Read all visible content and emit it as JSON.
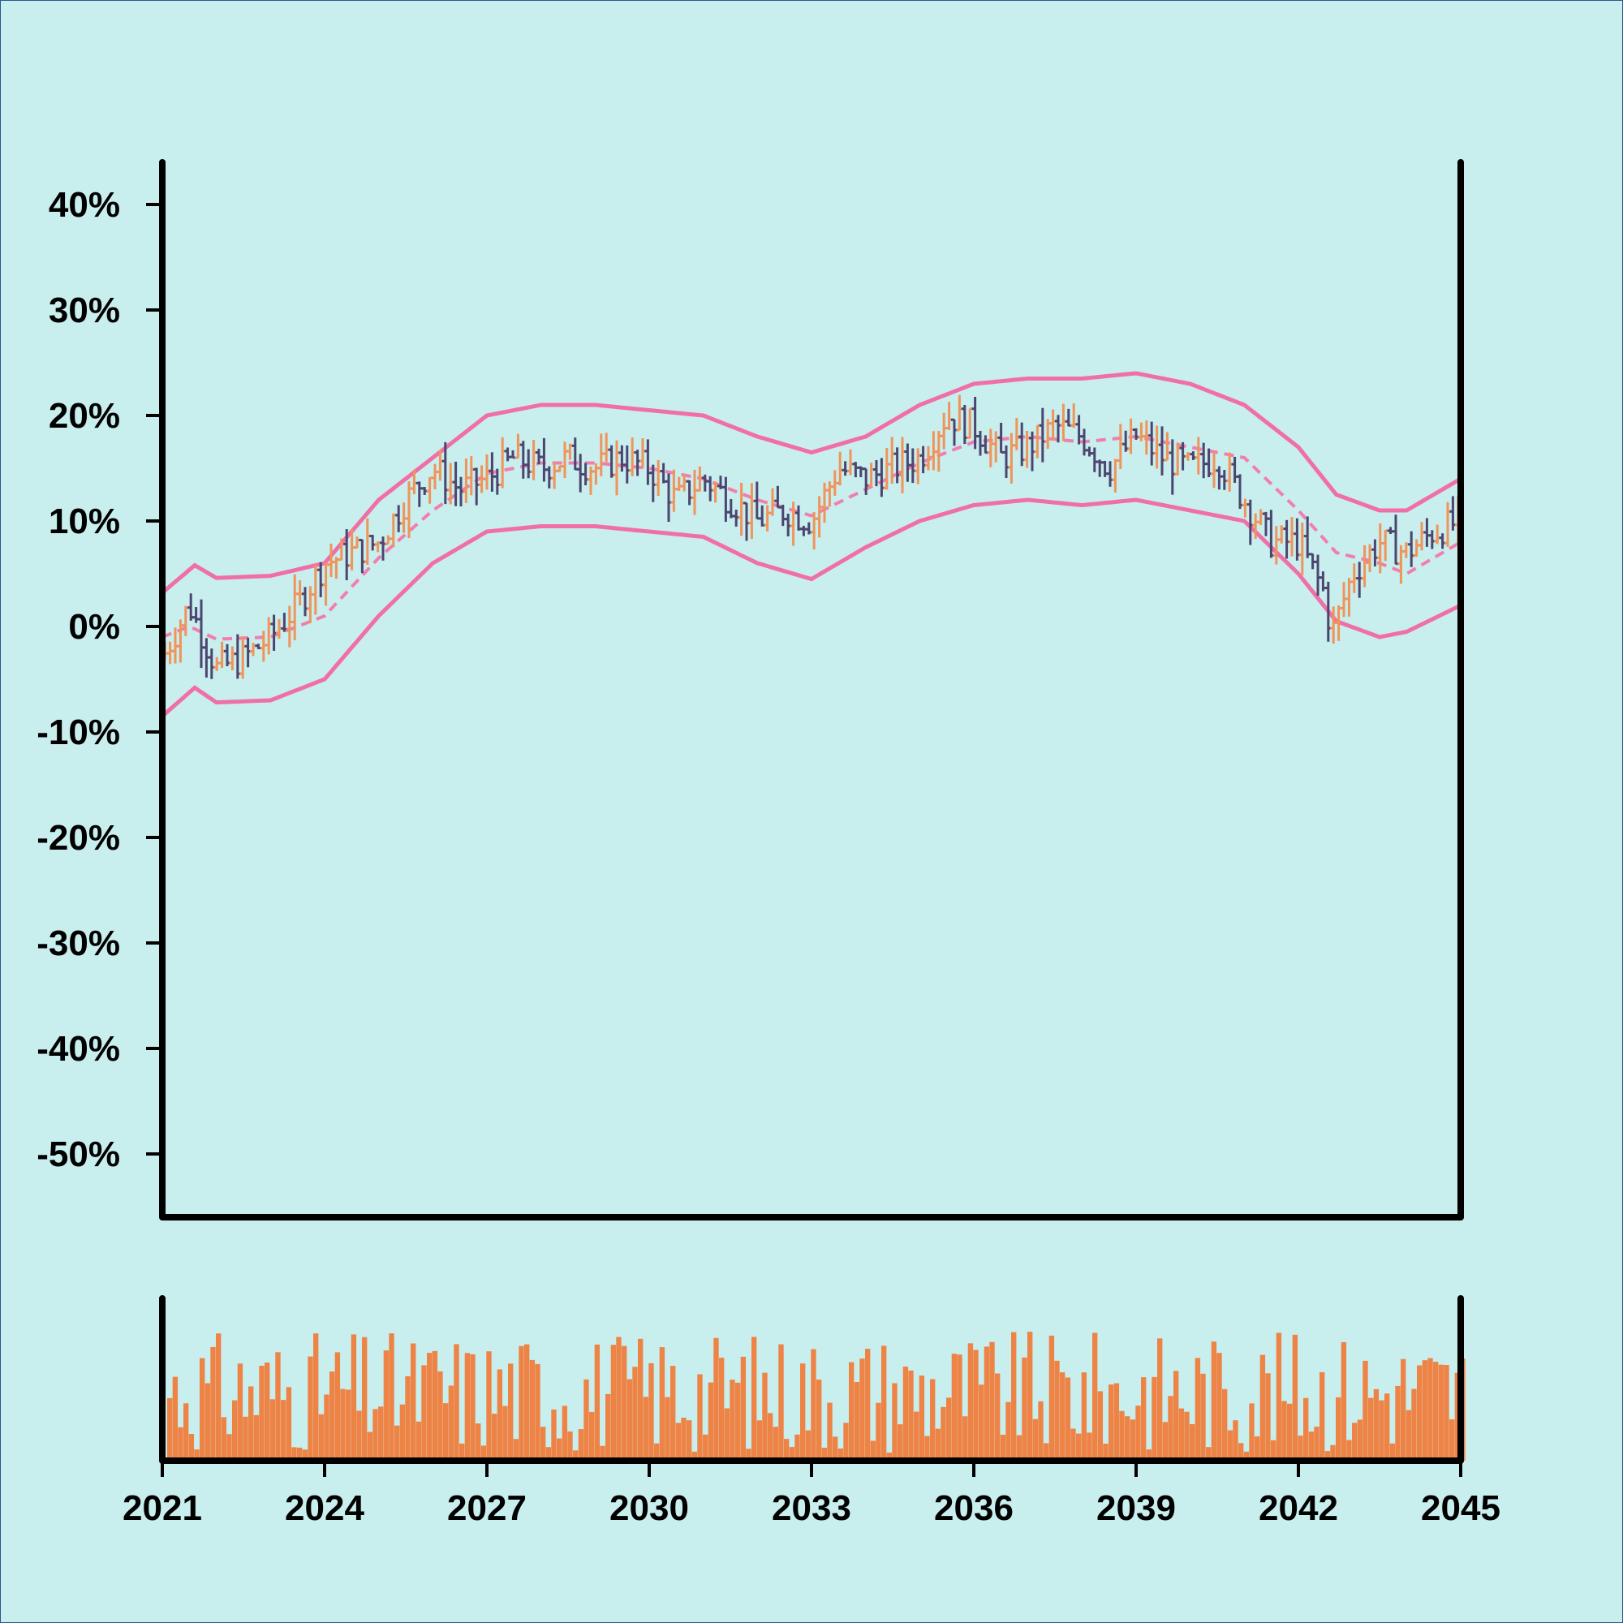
{
  "colors": {
    "background": "#c9eeee",
    "up": "#f0945a",
    "down": "#4b4670",
    "band": "#f06fa6",
    "mid": "#f07faf",
    "volume": "#ee8346",
    "axis": "#000000"
  },
  "chart_data": {
    "type": "ohlc",
    "title": "",
    "xlabel": "",
    "ylabel": "",
    "y_axis": {
      "range": [
        -0.56,
        0.44
      ],
      "ticks": [
        "40%",
        "30%",
        "20%",
        "10%",
        "0%",
        "-10%",
        "-20%",
        "-30%",
        "-40%",
        "-50%"
      ],
      "tick_values": [
        0.4,
        0.3,
        0.2,
        0.1,
        0.0,
        -0.1,
        -0.2,
        -0.3,
        -0.4,
        -0.5
      ]
    },
    "x_axis": {
      "range": [
        2021,
        2045
      ],
      "ticks": [
        "2021",
        "2024",
        "2027",
        "2030",
        "2033",
        "2036",
        "2039",
        "2042",
        "2045"
      ],
      "tick_values": [
        2021,
        2024,
        2027,
        2030,
        2033,
        2036,
        2039,
        2042,
        2045
      ]
    },
    "series": [
      {
        "type": "ohlc bars (weekly/monthly)",
        "approx_close_path": [
          [
            2021.0,
            -0.03
          ],
          [
            2021.5,
            0.02
          ],
          [
            2022.0,
            -0.04
          ],
          [
            2022.5,
            -0.03
          ],
          [
            2023.0,
            -0.01
          ],
          [
            2023.5,
            0.02
          ],
          [
            2024.0,
            0.06
          ],
          [
            2024.5,
            0.07
          ],
          [
            2025.0,
            0.08
          ],
          [
            2025.5,
            0.12
          ],
          [
            2026.0,
            0.15
          ],
          [
            2026.5,
            0.13
          ],
          [
            2027.0,
            0.14
          ],
          [
            2027.5,
            0.16
          ],
          [
            2028.0,
            0.15
          ],
          [
            2028.5,
            0.16
          ],
          [
            2029.0,
            0.15
          ],
          [
            2029.5,
            0.16
          ],
          [
            2030.0,
            0.15
          ],
          [
            2030.5,
            0.12
          ],
          [
            2031.0,
            0.14
          ],
          [
            2031.5,
            0.12
          ],
          [
            2032.0,
            0.1
          ],
          [
            2032.5,
            0.11
          ],
          [
            2033.0,
            0.1
          ],
          [
            2033.5,
            0.15
          ],
          [
            2034.0,
            0.14
          ],
          [
            2034.5,
            0.15
          ],
          [
            2035.0,
            0.16
          ],
          [
            2035.5,
            0.2
          ],
          [
            2036.0,
            0.19
          ],
          [
            2036.5,
            0.16
          ],
          [
            2037.0,
            0.17
          ],
          [
            2037.5,
            0.19
          ],
          [
            2038.0,
            0.18
          ],
          [
            2038.5,
            0.15
          ],
          [
            2039.0,
            0.18
          ],
          [
            2039.5,
            0.16
          ],
          [
            2040.0,
            0.15
          ],
          [
            2040.5,
            0.16
          ],
          [
            2041.0,
            0.12
          ],
          [
            2041.5,
            0.08
          ],
          [
            2042.0,
            0.08
          ],
          [
            2042.5,
            0.03
          ],
          [
            2042.6,
            -0.01
          ],
          [
            2043.0,
            0.05
          ],
          [
            2043.5,
            0.08
          ],
          [
            2044.0,
            0.07
          ],
          [
            2044.5,
            0.09
          ],
          [
            2045.0,
            0.1
          ]
        ]
      },
      {
        "type": "band upper",
        "points": [
          [
            2021.0,
            0.032
          ],
          [
            2021.6,
            0.058
          ],
          [
            2022.0,
            0.046
          ],
          [
            2023.0,
            0.048
          ],
          [
            2024.0,
            0.06
          ],
          [
            2025.0,
            0.12
          ],
          [
            2026.0,
            0.16
          ],
          [
            2027.0,
            0.2
          ],
          [
            2028.0,
            0.21
          ],
          [
            2029.0,
            0.21
          ],
          [
            2030.0,
            0.205
          ],
          [
            2031.0,
            0.2
          ],
          [
            2032.0,
            0.18
          ],
          [
            2033.0,
            0.165
          ],
          [
            2034.0,
            0.18
          ],
          [
            2035.0,
            0.21
          ],
          [
            2036.0,
            0.23
          ],
          [
            2037.0,
            0.235
          ],
          [
            2038.0,
            0.235
          ],
          [
            2039.0,
            0.24
          ],
          [
            2040.0,
            0.23
          ],
          [
            2041.0,
            0.21
          ],
          [
            2042.0,
            0.17
          ],
          [
            2042.7,
            0.125
          ],
          [
            2043.5,
            0.11
          ],
          [
            2044.0,
            0.11
          ],
          [
            2045.0,
            0.14
          ]
        ]
      },
      {
        "type": "band mid (dashed)",
        "points": [
          [
            2021.0,
            -0.01
          ],
          [
            2021.5,
            0.0
          ],
          [
            2022.0,
            -0.012
          ],
          [
            2023.0,
            -0.01
          ],
          [
            2024.0,
            0.01
          ],
          [
            2025.0,
            0.065
          ],
          [
            2026.0,
            0.11
          ],
          [
            2027.0,
            0.145
          ],
          [
            2028.0,
            0.155
          ],
          [
            2029.0,
            0.155
          ],
          [
            2030.0,
            0.15
          ],
          [
            2031.0,
            0.14
          ],
          [
            2032.0,
            0.12
          ],
          [
            2033.0,
            0.105
          ],
          [
            2034.0,
            0.13
          ],
          [
            2035.0,
            0.155
          ],
          [
            2036.0,
            0.175
          ],
          [
            2037.0,
            0.18
          ],
          [
            2038.0,
            0.175
          ],
          [
            2039.0,
            0.18
          ],
          [
            2040.0,
            0.17
          ],
          [
            2041.0,
            0.16
          ],
          [
            2042.0,
            0.11
          ],
          [
            2042.7,
            0.07
          ],
          [
            2043.5,
            0.06
          ],
          [
            2044.0,
            0.05
          ],
          [
            2045.0,
            0.08
          ]
        ]
      },
      {
        "type": "band lower",
        "points": [
          [
            2021.0,
            -0.085
          ],
          [
            2021.6,
            -0.058
          ],
          [
            2022.0,
            -0.072
          ],
          [
            2023.0,
            -0.07
          ],
          [
            2024.0,
            -0.05
          ],
          [
            2025.0,
            0.01
          ],
          [
            2026.0,
            0.06
          ],
          [
            2027.0,
            0.09
          ],
          [
            2028.0,
            0.095
          ],
          [
            2029.0,
            0.095
          ],
          [
            2030.0,
            0.09
          ],
          [
            2031.0,
            0.085
          ],
          [
            2032.0,
            0.06
          ],
          [
            2033.0,
            0.045
          ],
          [
            2034.0,
            0.075
          ],
          [
            2035.0,
            0.1
          ],
          [
            2036.0,
            0.115
          ],
          [
            2037.0,
            0.12
          ],
          [
            2038.0,
            0.115
          ],
          [
            2039.0,
            0.12
          ],
          [
            2040.0,
            0.11
          ],
          [
            2041.0,
            0.1
          ],
          [
            2042.0,
            0.05
          ],
          [
            2042.7,
            0.005
          ],
          [
            2043.5,
            -0.01
          ],
          [
            2044.0,
            -0.005
          ],
          [
            2045.0,
            0.02
          ]
        ]
      },
      {
        "type": "volume bars",
        "note": "unlabeled volume panel below price chart"
      }
    ]
  }
}
